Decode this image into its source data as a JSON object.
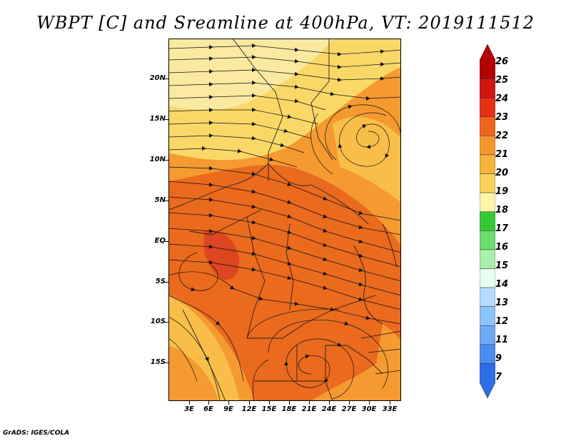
{
  "title": "WBPT [C] and Sreamline at 400hPa, VT: 2019111512",
  "credit": "GrADS: IGES/COLA",
  "lat_labels": [
    "20N",
    "15N",
    "10N",
    "5N",
    "EQ",
    "5S",
    "10S",
    "15S"
  ],
  "lon_labels": [
    "3E",
    "6E",
    "9E",
    "12E",
    "15E",
    "18E",
    "21E",
    "24E",
    "27E",
    "30E",
    "33E"
  ],
  "colorbar": {
    "labels": [
      "26",
      "25",
      "24",
      "23",
      "22",
      "21",
      "20",
      "19",
      "18",
      "17",
      "16",
      "15",
      "14",
      "13",
      "12",
      "11",
      "9",
      "7"
    ],
    "colors": [
      "#b40000",
      "#d21414",
      "#e63214",
      "#f0641e",
      "#f5962d",
      "#f5b43c",
      "#fad25a",
      "#fff5aa",
      "#37c837",
      "#6edc6e",
      "#aaf0aa",
      "#e6fff0",
      "#b4dcff",
      "#8cc3fa",
      "#6eaaf5",
      "#4b8cf0",
      "#2d6ee6"
    ]
  },
  "map_colors": {
    "dark_orange": "#ea6a1e",
    "orange": "#f59a30",
    "light_orange": "#f8be48",
    "yellow": "#fad868",
    "pale": "#fbe9a0",
    "red_core": "#dc4620"
  }
}
